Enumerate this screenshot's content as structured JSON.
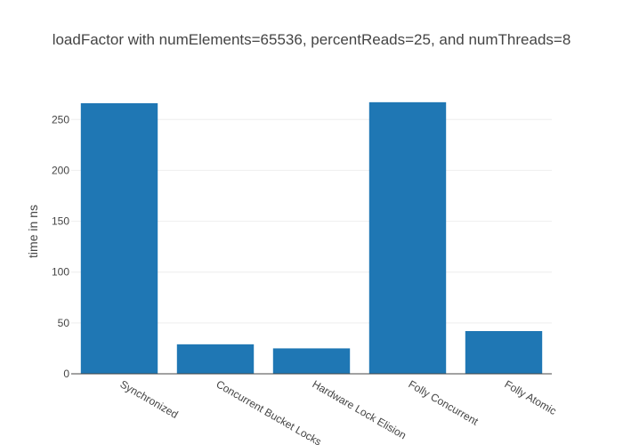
{
  "chart_data": {
    "type": "bar",
    "title": "loadFactor with numElements=65536, percentReads=25, and numThreads=8",
    "xlabel": "",
    "ylabel": "time in ns",
    "categories": [
      "Synchronized",
      "Concurrent Bucket Locks",
      "Hardware Lock Elision",
      "Folly Concurrent",
      "Folly Atomic"
    ],
    "values": [
      266,
      29,
      25,
      267,
      42
    ],
    "ylim": [
      0,
      280
    ],
    "yticks": [
      0,
      50,
      100,
      150,
      200,
      250
    ],
    "grid": true,
    "legend": "none",
    "bar_color": "#1f77b4"
  }
}
